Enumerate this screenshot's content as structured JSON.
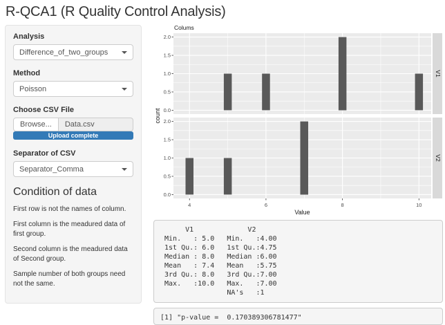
{
  "page": {
    "title": "R-QCA1 (R Quality Control Analysis)"
  },
  "sidebar": {
    "analysis_label": "Analysis",
    "analysis_value": "Difference_of_two_groups",
    "method_label": "Method",
    "method_value": "Poisson",
    "file_label": "Choose CSV File",
    "browse_label": "Browse...",
    "file_name": "Data.csv",
    "upload_status": "Upload complete",
    "separator_label": "Separator of CSV",
    "separator_value": "Separator_Comma",
    "condition_heading": "Condition of data",
    "conditions": [
      "First row is not the names of column.",
      "First column is the meadured data of first group.",
      "Second column is the meadured data of Second group.",
      "Sample number of both groups need not the same."
    ]
  },
  "output": {
    "summary_lines": [
      "      V1             V2      ",
      " Min.   : 5.0   Min.   :4.00 ",
      " 1st Qu.: 6.0   1st Qu.:4.75 ",
      " Median : 8.0   Median :6.00 ",
      " Mean   : 7.4   Mean   :5.75 ",
      " 3rd Qu.: 8.0   3rd Qu.:7.00 ",
      " Max.   :10.0   Max.   :7.00 ",
      "                NA's   :1    "
    ],
    "p_value_line": "[1] \"p-value =  0.170389306781477\""
  },
  "chart_data": {
    "type": "bar",
    "title": "Colums",
    "xlabel": "Value",
    "ylabel": "count",
    "facet_side": "right",
    "facets": [
      {
        "label": "V1",
        "x": [
          5,
          6,
          8,
          10
        ],
        "counts": [
          1,
          1,
          2,
          1
        ]
      },
      {
        "label": "V2",
        "x": [
          4,
          5,
          7
        ],
        "counts": [
          1,
          1,
          2
        ]
      }
    ],
    "x_ticks": [
      4,
      6,
      8,
      10
    ],
    "x_minor": [
      5,
      7,
      9
    ],
    "y_ticks": [
      0.0,
      0.5,
      1.0,
      1.5,
      2.0
    ],
    "y_minor": [
      0.25,
      0.75,
      1.25,
      1.75
    ],
    "xlim": [
      3.58,
      10.32
    ],
    "ylim": [
      -0.105,
      2.105
    ],
    "bar_width": 0.207,
    "grid": true,
    "colors": {
      "bar": "#595959",
      "panel_bg": "#ebebeb",
      "strip_bg": "#d9d9d9",
      "grid": "#ffffff",
      "tick_label": "#4d4d4d",
      "axis_text": "#1a1a1a"
    }
  }
}
